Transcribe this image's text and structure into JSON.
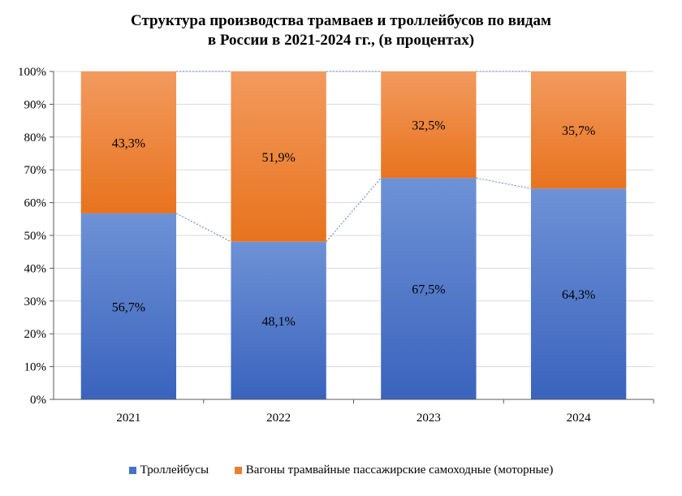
{
  "chart_data": {
    "type": "bar",
    "stacked": true,
    "title_lines": [
      "Структура производства трамваев и троллейбусов по видам",
      "в России в 2021-2024 гг., (в процентах)"
    ],
    "categories": [
      "2021",
      "2022",
      "2023",
      "2024"
    ],
    "series": [
      {
        "name": "Троллейбусы",
        "values": [
          56.7,
          48.1,
          67.5,
          64.3
        ],
        "labels": [
          "56,7%",
          "48,1%",
          "67,5%",
          "64,3%"
        ],
        "color": "#4472C4"
      },
      {
        "name": "Вагоны трамвайные пассажирские самоходные (моторные)",
        "values": [
          43.3,
          51.9,
          32.5,
          35.7
        ],
        "labels": [
          "43,3%",
          "51,9%",
          "32,5%",
          "35,7%"
        ],
        "color": "#ED7D31"
      }
    ],
    "ylim": [
      0,
      100
    ],
    "yticks": [
      "0%",
      "10%",
      "20%",
      "30%",
      "40%",
      "50%",
      "60%",
      "70%",
      "80%",
      "90%",
      "100%"
    ],
    "series_lines": true,
    "legend_position": "bottom"
  }
}
